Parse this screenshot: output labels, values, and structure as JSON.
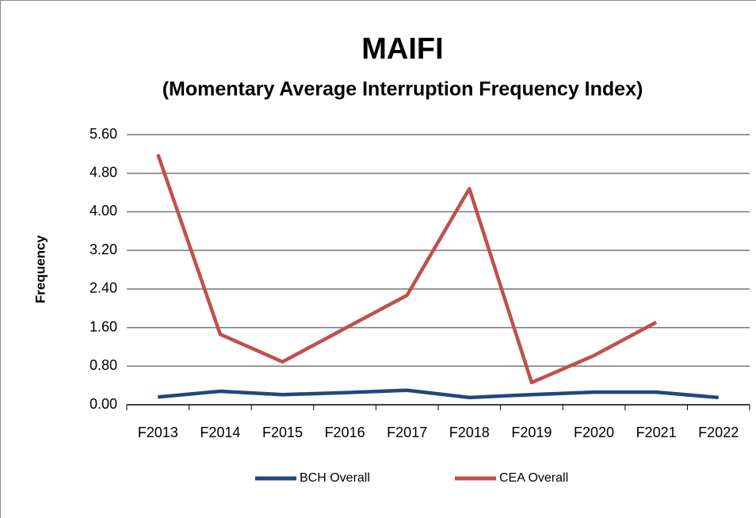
{
  "chart_data": {
    "type": "line",
    "title": "MAIFI",
    "subtitle": "(Momentary Average Interruption Frequency Index)",
    "y_label": "Frequency",
    "categories": [
      "F2013",
      "F2014",
      "F2015",
      "F2016",
      "F2017",
      "F2018",
      "F2019",
      "F2020",
      "F2021",
      "F2022"
    ],
    "series": [
      {
        "name": "BCH Overall",
        "color": "#1f497d",
        "values": [
          0.16,
          0.28,
          0.21,
          0.25,
          0.3,
          0.15,
          0.21,
          0.26,
          0.26,
          0.15
        ]
      },
      {
        "name": "CEA Overall",
        "color": "#c0504d",
        "values": [
          5.19,
          1.46,
          0.89,
          1.58,
          2.27,
          4.48,
          0.46,
          1.02,
          1.71,
          null
        ]
      }
    ],
    "ylim": [
      0,
      5.6
    ],
    "yticks": [
      {
        "value": 0,
        "label": "0.00"
      },
      {
        "value": 0.8,
        "label": "0.80"
      },
      {
        "value": 1.6,
        "label": "1.60"
      },
      {
        "value": 2.4,
        "label": "2.40"
      },
      {
        "value": 3.2,
        "label": "3.20"
      },
      {
        "value": 4,
        "label": "4.00"
      },
      {
        "value": 4.8,
        "label": "4.80"
      },
      {
        "value": 5.6,
        "label": "5.60"
      }
    ],
    "grid": true,
    "legend": "bottom"
  }
}
